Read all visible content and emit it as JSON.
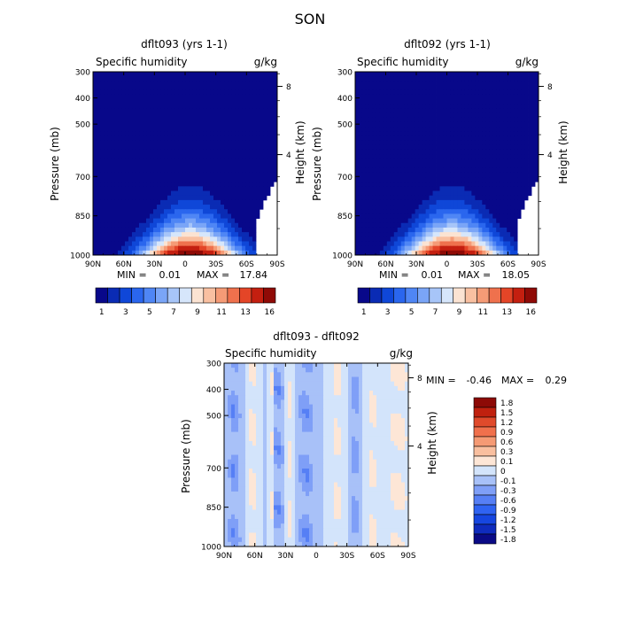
{
  "figure": {
    "title": "SON"
  },
  "colors": {
    "abs_scale": [
      "#08088a",
      "#0a2bb4",
      "#0f47d8",
      "#2a66ee",
      "#4f86f5",
      "#7aa5f7",
      "#a7c5f8",
      "#d6e6fb",
      "#fbe3d2",
      "#f9c0a1",
      "#f59b76",
      "#ef714d",
      "#e44527",
      "#c41f10",
      "#8f0a06"
    ],
    "diff_scale": [
      "#0a0a86",
      "#0f2bbd",
      "#1646e0",
      "#2f63f2",
      "#567ff5",
      "#7f9ff7",
      "#a8c1f8",
      "#d3e4fb",
      "#fde6d6",
      "#f9bf9f",
      "#f59a74",
      "#f0704c",
      "#e04a2b",
      "#c0210f",
      "#8d0a06"
    ]
  },
  "chart_data": [
    {
      "id": "panel1",
      "type": "heatmap",
      "title": "dflt093 (yrs 1-1)",
      "left_label": "Specific humidity",
      "right_label": "g/kg",
      "ylabel": "Pressure (mb)",
      "y2label": "Height (km)",
      "x_ticks": [
        "90N",
        "60N",
        "30N",
        "0",
        "30S",
        "60S",
        "90S"
      ],
      "x_values": [
        90,
        60,
        30,
        0,
        -30,
        -60,
        -90
      ],
      "y_ticks": [
        "300",
        "400",
        "500",
        "700",
        "850",
        "1000"
      ],
      "y_values": [
        300,
        400,
        500,
        700,
        850,
        1000
      ],
      "y2_ticks": [
        "8",
        "4"
      ],
      "y2_values": [
        8,
        4
      ],
      "ylim": [
        1000,
        300
      ],
      "stats": {
        "min": "0.01",
        "max": "17.84"
      },
      "colorbar_labels": [
        "1",
        "3",
        "5",
        "7",
        "9",
        "11",
        "13",
        "16"
      ],
      "colorbar_levels": [
        1,
        2,
        3,
        4,
        5,
        6,
        7,
        8,
        9,
        10,
        11,
        12,
        13,
        14,
        16
      ],
      "field": {
        "peak_lat": -5,
        "peak_value": 17.8,
        "decay_scale_mb": 115,
        "width_lat_at_surface": 34,
        "width_lat_at_top": 8
      }
    },
    {
      "id": "panel2",
      "type": "heatmap",
      "title": "dflt092 (yrs 1-1)",
      "left_label": "Specific humidity",
      "right_label": "g/kg",
      "ylabel": "Pressure (mb)",
      "y2label": "Height (km)",
      "x_ticks": [
        "90N",
        "60N",
        "30N",
        "0",
        "30S",
        "60S",
        "90S"
      ],
      "x_values": [
        90,
        60,
        30,
        0,
        -30,
        -60,
        -90
      ],
      "y_ticks": [
        "300",
        "400",
        "500",
        "700",
        "850",
        "1000"
      ],
      "y_values": [
        300,
        400,
        500,
        700,
        850,
        1000
      ],
      "y2_ticks": [
        "8",
        "4"
      ],
      "y2_values": [
        8,
        4
      ],
      "ylim": [
        1000,
        300
      ],
      "stats": {
        "min": "0.01",
        "max": "18.05"
      },
      "colorbar_labels": [
        "1",
        "3",
        "5",
        "7",
        "9",
        "11",
        "13",
        "16"
      ],
      "colorbar_levels": [
        1,
        2,
        3,
        4,
        5,
        6,
        7,
        8,
        9,
        10,
        11,
        12,
        13,
        14,
        16
      ],
      "field": {
        "peak_lat": -5,
        "peak_value": 18.0,
        "decay_scale_mb": 115,
        "width_lat_at_surface": 34,
        "width_lat_at_top": 8
      }
    },
    {
      "id": "panel3",
      "type": "heatmap",
      "title": "dflt093 - dflt092",
      "left_label": "Specific humidity",
      "right_label": "g/kg",
      "ylabel": "Pressure (mb)",
      "y2label": "Height (km)",
      "x_ticks": [
        "90N",
        "60N",
        "30N",
        "0",
        "30S",
        "60S",
        "90S"
      ],
      "x_values": [
        90,
        60,
        30,
        0,
        -30,
        -60,
        -90
      ],
      "y_ticks": [
        "300",
        "400",
        "500",
        "700",
        "850",
        "1000"
      ],
      "y_values": [
        300,
        400,
        500,
        700,
        850,
        1000
      ],
      "y2_ticks": [
        "8",
        "4"
      ],
      "y2_values": [
        8,
        4
      ],
      "ylim": [
        1000,
        300
      ],
      "stats": {
        "min": "-0.46",
        "max": "0.29"
      },
      "colorbar_labels": [
        "1.8",
        "1.5",
        "1.2",
        "0.9",
        "0.6",
        "0.3",
        "0.1",
        "0",
        "-0.1",
        "-0.3",
        "-0.6",
        "-0.9",
        "-1.2",
        "-1.5",
        "-1.8"
      ],
      "colorbar_levels": [
        -1.8,
        -1.5,
        -1.2,
        -0.9,
        -0.6,
        -0.3,
        -0.1,
        0,
        0.1,
        0.3,
        0.6,
        0.9,
        1.2,
        1.5,
        1.8
      ],
      "field": {
        "positive_bands": [
          {
            "lat": 62,
            "half_width": 4
          },
          {
            "lat": 44,
            "half_width": 2
          },
          {
            "lat": 26,
            "half_width": 3
          },
          {
            "lat": -20,
            "half_width": 4
          },
          {
            "lat": -55,
            "half_width": 3
          },
          {
            "lat": -80,
            "half_width": 8
          }
        ],
        "negative_bands": [
          {
            "lat": 80,
            "half_width": 5
          },
          {
            "lat": 38,
            "half_width": 5
          },
          {
            "lat": 10,
            "half_width": 6
          },
          {
            "lat": -38,
            "half_width": 3
          }
        ]
      }
    }
  ]
}
